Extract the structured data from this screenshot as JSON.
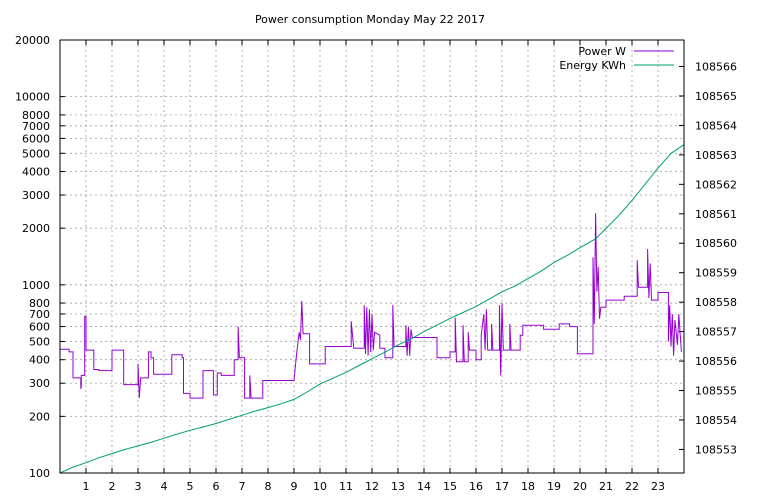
{
  "chart_data": {
    "type": "line",
    "title": "Power consumption Monday May 22 2017",
    "xlabel": "",
    "ylabel": "",
    "y2label": "",
    "xlim": [
      0,
      24
    ],
    "ylim": [
      100,
      20000
    ],
    "yscale": "log",
    "y2lim": [
      108552.2,
      108566.9
    ],
    "x_ticks": [
      "1",
      "2",
      "3",
      "4",
      "5",
      "6",
      "7",
      "8",
      "9",
      "10",
      "11",
      "12",
      "13",
      "14",
      "15",
      "16",
      "17",
      "18",
      "19",
      "20",
      "21",
      "22",
      "23"
    ],
    "y_ticks": [
      "100",
      "200",
      "300",
      "400",
      "500",
      "600",
      "700",
      "800",
      "1000",
      "2000",
      "3000",
      "4000",
      "5000",
      "6000",
      "7000",
      "8000",
      "10000",
      "20000"
    ],
    "y2_ticks": [
      "108553",
      "108554",
      "108555",
      "108556",
      "108557",
      "108558",
      "108559",
      "108560",
      "108561",
      "108562",
      "108563",
      "108564",
      "108565",
      "108566"
    ],
    "grid": true,
    "legend_position": "top-right",
    "series": [
      {
        "name": "Power W",
        "axis": "left",
        "color": "#9400d3",
        "points": [
          [
            0.0,
            455
          ],
          [
            0.35,
            455
          ],
          [
            0.35,
            440
          ],
          [
            0.5,
            440
          ],
          [
            0.5,
            320
          ],
          [
            0.8,
            320
          ],
          [
            0.8,
            280
          ],
          [
            0.82,
            290
          ],
          [
            0.82,
            330
          ],
          [
            0.95,
            330
          ],
          [
            0.95,
            680
          ],
          [
            1.0,
            680
          ],
          [
            1.0,
            450
          ],
          [
            1.3,
            450
          ],
          [
            1.3,
            355
          ],
          [
            1.5,
            355
          ],
          [
            1.5,
            350
          ],
          [
            2.0,
            350
          ],
          [
            2.0,
            450
          ],
          [
            2.45,
            450
          ],
          [
            2.45,
            295
          ],
          [
            3.0,
            295
          ],
          [
            3.0,
            380
          ],
          [
            3.05,
            250
          ],
          [
            3.1,
            320
          ],
          [
            3.4,
            320
          ],
          [
            3.4,
            440
          ],
          [
            3.5,
            440
          ],
          [
            3.5,
            410
          ],
          [
            3.6,
            410
          ],
          [
            3.6,
            335
          ],
          [
            4.0,
            335
          ],
          [
            4.3,
            335
          ],
          [
            4.3,
            425
          ],
          [
            4.7,
            425
          ],
          [
            4.7,
            410
          ],
          [
            4.75,
            410
          ],
          [
            4.75,
            265
          ],
          [
            5.0,
            265
          ],
          [
            5.0,
            250
          ],
          [
            5.5,
            250
          ],
          [
            5.5,
            350
          ],
          [
            5.9,
            350
          ],
          [
            5.9,
            260
          ],
          [
            6.05,
            260
          ],
          [
            6.05,
            340
          ],
          [
            6.2,
            340
          ],
          [
            6.2,
            330
          ],
          [
            6.7,
            330
          ],
          [
            6.7,
            400
          ],
          [
            6.85,
            400
          ],
          [
            6.85,
            600
          ],
          [
            6.9,
            410
          ],
          [
            7.1,
            410
          ],
          [
            7.1,
            250
          ],
          [
            7.3,
            250
          ],
          [
            7.3,
            330
          ],
          [
            7.35,
            250
          ],
          [
            7.8,
            250
          ],
          [
            7.8,
            310
          ],
          [
            9.0,
            310
          ],
          [
            9.1,
            430
          ],
          [
            9.2,
            560
          ],
          [
            9.25,
            510
          ],
          [
            9.3,
            820
          ],
          [
            9.35,
            550
          ],
          [
            9.6,
            550
          ],
          [
            9.6,
            380
          ],
          [
            10.0,
            380
          ],
          [
            10.2,
            380
          ],
          [
            10.2,
            470
          ],
          [
            10.5,
            470
          ],
          [
            11.2,
            470
          ],
          [
            11.2,
            640
          ],
          [
            11.3,
            460
          ],
          [
            11.7,
            460
          ],
          [
            11.7,
            780
          ],
          [
            11.75,
            430
          ],
          [
            11.8,
            760
          ],
          [
            11.85,
            420
          ],
          [
            11.9,
            740
          ],
          [
            11.95,
            440
          ],
          [
            12.0,
            700
          ],
          [
            12.05,
            450
          ],
          [
            12.1,
            560
          ],
          [
            12.3,
            540
          ],
          [
            12.3,
            460
          ],
          [
            12.5,
            460
          ],
          [
            12.5,
            410
          ],
          [
            12.8,
            410
          ],
          [
            12.8,
            780
          ],
          [
            12.85,
            470
          ],
          [
            13.3,
            470
          ],
          [
            13.3,
            610
          ],
          [
            13.35,
            420
          ],
          [
            13.4,
            600
          ],
          [
            13.45,
            420
          ],
          [
            13.5,
            580
          ],
          [
            13.55,
            525
          ],
          [
            14.5,
            525
          ],
          [
            14.5,
            410
          ],
          [
            15.0,
            410
          ],
          [
            15.0,
            440
          ],
          [
            15.2,
            440
          ],
          [
            15.2,
            670
          ],
          [
            15.25,
            390
          ],
          [
            15.5,
            390
          ],
          [
            15.5,
            610
          ],
          [
            15.55,
            390
          ],
          [
            15.7,
            390
          ],
          [
            15.7,
            560
          ],
          [
            15.75,
            450
          ],
          [
            16.0,
            450
          ],
          [
            16.0,
            400
          ],
          [
            16.2,
            400
          ],
          [
            16.2,
            540
          ],
          [
            16.3,
            700
          ],
          [
            16.35,
            450
          ],
          [
            16.4,
            740
          ],
          [
            16.45,
            450
          ],
          [
            16.6,
            450
          ],
          [
            16.6,
            620
          ],
          [
            16.65,
            450
          ],
          [
            16.9,
            450
          ],
          [
            16.9,
            780
          ],
          [
            16.95,
            330
          ],
          [
            17.0,
            800
          ],
          [
            17.05,
            450
          ],
          [
            17.3,
            450
          ],
          [
            17.3,
            620
          ],
          [
            17.35,
            450
          ],
          [
            17.7,
            450
          ],
          [
            17.7,
            540
          ],
          [
            17.8,
            540
          ],
          [
            17.8,
            610
          ],
          [
            18.2,
            610
          ],
          [
            18.6,
            610
          ],
          [
            18.6,
            580
          ],
          [
            19.2,
            580
          ],
          [
            19.2,
            620
          ],
          [
            19.6,
            620
          ],
          [
            19.6,
            600
          ],
          [
            19.9,
            600
          ],
          [
            19.9,
            430
          ],
          [
            20.5,
            430
          ],
          [
            20.5,
            1400
          ],
          [
            20.55,
            620
          ],
          [
            20.6,
            2400
          ],
          [
            20.65,
            920
          ],
          [
            20.7,
            1250
          ],
          [
            20.75,
            660
          ],
          [
            20.8,
            760
          ],
          [
            21.0,
            760
          ],
          [
            21.0,
            830
          ],
          [
            21.7,
            830
          ],
          [
            21.7,
            870
          ],
          [
            22.2,
            870
          ],
          [
            22.2,
            1350
          ],
          [
            22.25,
            970
          ],
          [
            22.6,
            970
          ],
          [
            22.6,
            1550
          ],
          [
            22.65,
            850
          ],
          [
            22.7,
            1300
          ],
          [
            22.75,
            830
          ],
          [
            23.0,
            830
          ],
          [
            23.0,
            910
          ],
          [
            23.4,
            910
          ],
          [
            23.4,
            500
          ],
          [
            23.45,
            780
          ],
          [
            23.5,
            470
          ],
          [
            23.55,
            700
          ],
          [
            23.6,
            420
          ],
          [
            23.65,
            650
          ],
          [
            23.75,
            480
          ],
          [
            23.8,
            700
          ],
          [
            23.9,
            440
          ]
        ]
      },
      {
        "name": "Energy KWh",
        "axis": "right",
        "color": "#009e73",
        "points": [
          [
            0.0,
            108552.2
          ],
          [
            0.5,
            108552.4
          ],
          [
            1.0,
            108552.55
          ],
          [
            1.5,
            108552.72
          ],
          [
            2.0,
            108552.86
          ],
          [
            2.5,
            108553.0
          ],
          [
            3.0,
            108553.12
          ],
          [
            3.5,
            108553.24
          ],
          [
            4.0,
            108553.38
          ],
          [
            4.5,
            108553.52
          ],
          [
            5.0,
            108553.65
          ],
          [
            5.5,
            108553.76
          ],
          [
            6.0,
            108553.88
          ],
          [
            6.5,
            108554.02
          ],
          [
            7.0,
            108554.16
          ],
          [
            7.5,
            108554.3
          ],
          [
            8.0,
            108554.42
          ],
          [
            8.5,
            108554.55
          ],
          [
            9.0,
            108554.7
          ],
          [
            9.5,
            108554.95
          ],
          [
            10.0,
            108555.22
          ],
          [
            10.5,
            108555.42
          ],
          [
            11.0,
            108555.62
          ],
          [
            11.5,
            108555.85
          ],
          [
            12.0,
            108556.08
          ],
          [
            12.5,
            108556.3
          ],
          [
            13.0,
            108556.55
          ],
          [
            13.5,
            108556.75
          ],
          [
            14.0,
            108557.0
          ],
          [
            14.5,
            108557.22
          ],
          [
            15.0,
            108557.45
          ],
          [
            15.5,
            108557.65
          ],
          [
            16.0,
            108557.85
          ],
          [
            16.5,
            108558.1
          ],
          [
            17.0,
            108558.35
          ],
          [
            17.5,
            108558.55
          ],
          [
            18.0,
            108558.8
          ],
          [
            18.5,
            108559.05
          ],
          [
            19.0,
            108559.35
          ],
          [
            19.5,
            108559.58
          ],
          [
            20.0,
            108559.85
          ],
          [
            20.6,
            108560.15
          ],
          [
            21.0,
            108560.5
          ],
          [
            21.5,
            108560.95
          ],
          [
            22.0,
            108561.45
          ],
          [
            22.5,
            108562.0
          ],
          [
            23.0,
            108562.55
          ],
          [
            23.5,
            108563.05
          ],
          [
            24.0,
            108563.35
          ]
        ]
      }
    ]
  }
}
